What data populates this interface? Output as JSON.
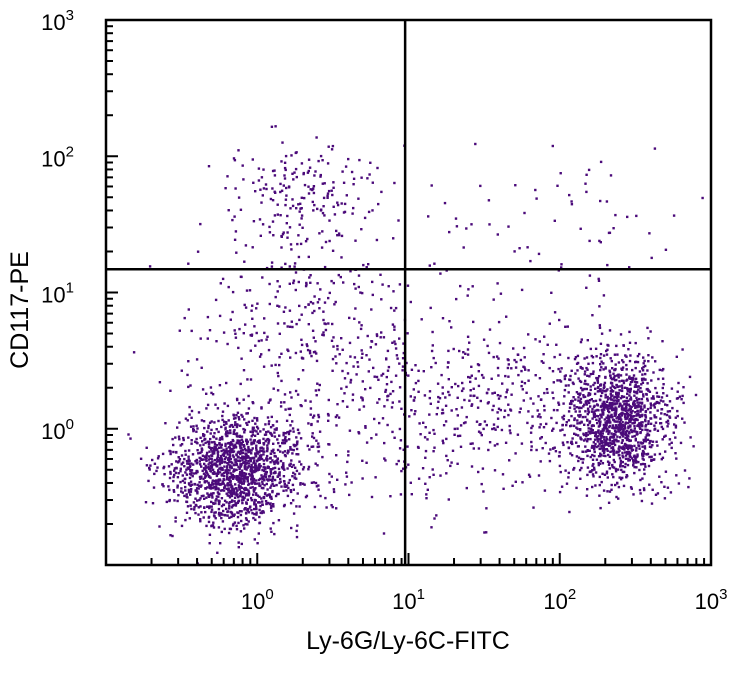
{
  "chart_data": {
    "type": "scatter",
    "xlabel": "Ly-6G/Ly-6C-FITC",
    "ylabel": "CD117-PE",
    "x_scale": "log",
    "y_scale": "log",
    "xlim": [
      0.1,
      1000
    ],
    "ylim": [
      0.1,
      1000
    ],
    "x_ticks": [
      {
        "value": 1,
        "base": "10",
        "exp": "0"
      },
      {
        "value": 10,
        "base": "10",
        "exp": "1"
      },
      {
        "value": 100,
        "base": "10",
        "exp": "2"
      },
      {
        "value": 1000,
        "base": "10",
        "exp": "3"
      }
    ],
    "y_ticks": [
      {
        "value": 1,
        "base": "10",
        "exp": "0"
      },
      {
        "value": 10,
        "base": "10",
        "exp": "1"
      },
      {
        "value": 100,
        "base": "10",
        "exp": "2"
      },
      {
        "value": 1000,
        "base": "10",
        "exp": "3"
      }
    ],
    "quadrant_gate": {
      "x": 9.5,
      "y": 14.8
    },
    "dot_color": "#4b0a7a",
    "grid": false,
    "populations": [
      {
        "center_x": 0.7,
        "center_y": 0.5,
        "spread_x_log": 0.22,
        "spread_y_log": 0.2,
        "count": 1500
      },
      {
        "center_x": 240,
        "center_y": 1.2,
        "spread_x_log": 0.17,
        "spread_y_log": 0.24,
        "count": 1300
      },
      {
        "center_x": 2.2,
        "center_y": 4,
        "spread_x_log": 0.4,
        "spread_y_log": 0.55,
        "count": 500
      },
      {
        "center_x": 35,
        "center_y": 1.5,
        "spread_x_log": 0.45,
        "spread_y_log": 0.35,
        "count": 450
      },
      {
        "center_x": 2.0,
        "center_y": 60,
        "spread_x_log": 0.25,
        "spread_y_log": 0.18,
        "count": 160
      },
      {
        "center_x": 100,
        "center_y": 40,
        "spread_x_log": 0.5,
        "spread_y_log": 0.25,
        "count": 60
      }
    ]
  }
}
